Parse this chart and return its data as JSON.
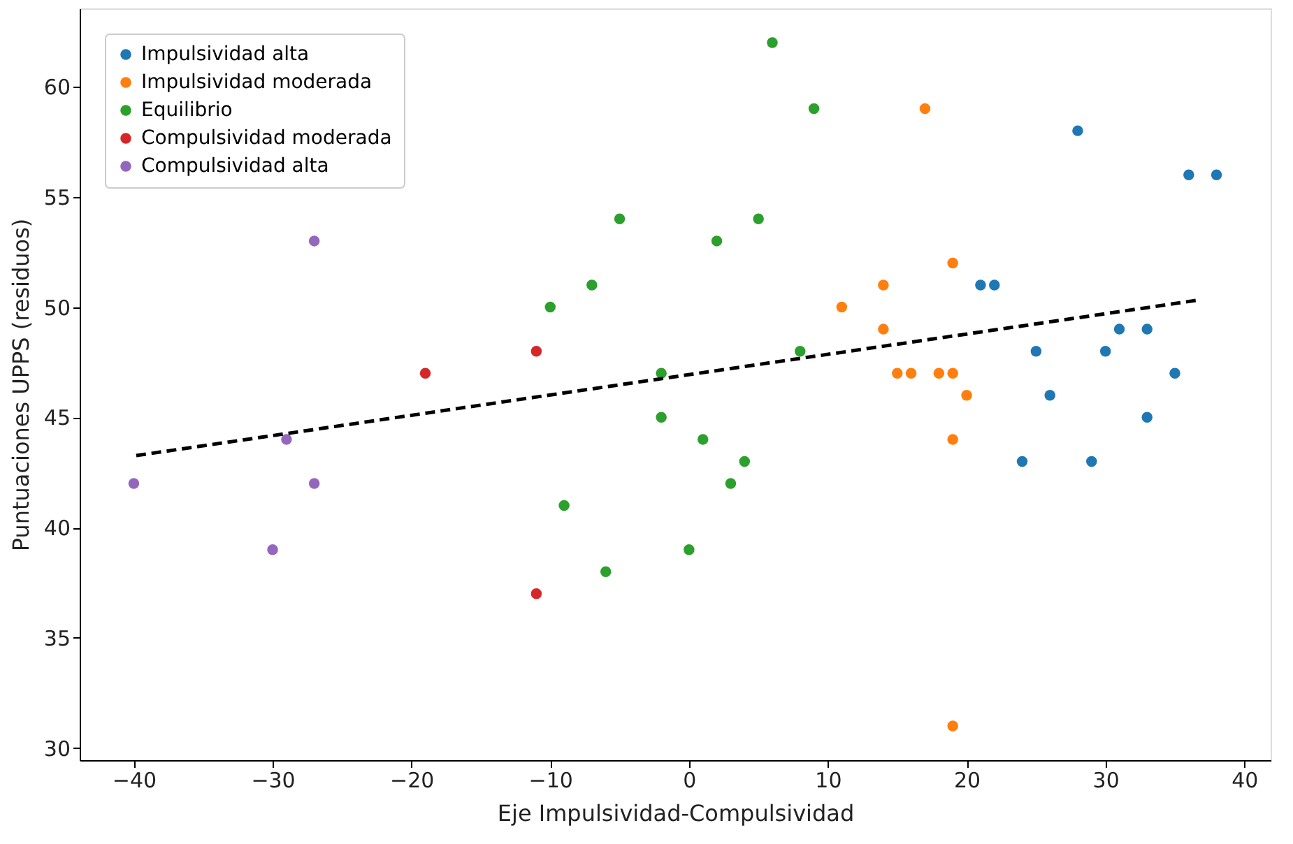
{
  "chart_data": {
    "type": "scatter",
    "xlabel": "Eje Impulsividad-Compulsividad",
    "ylabel": "Puntuaciones UPPS (residuos)",
    "xlim": [
      -43.9,
      41.9
    ],
    "ylim": [
      29.45,
      63.55
    ],
    "xticks": [
      {
        "value": -40,
        "label": "−40"
      },
      {
        "value": -30,
        "label": "−30"
      },
      {
        "value": -20,
        "label": "−20"
      },
      {
        "value": -10,
        "label": "−10"
      },
      0,
      10,
      20,
      30,
      40
    ],
    "yticks": [
      30,
      35,
      40,
      45,
      50,
      55,
      60
    ],
    "legend": "top left",
    "marker": "circle",
    "grid": false,
    "series": [
      {
        "name": "Impulsividad alta",
        "color": "#1f77b4",
        "x": [
          28,
          36,
          38,
          21,
          22,
          25,
          30,
          31,
          33,
          35,
          26,
          33,
          24,
          29
        ],
        "values": [
          58,
          56,
          56,
          51,
          51,
          48,
          48,
          49,
          49,
          47,
          46,
          45,
          43,
          43
        ]
      },
      {
        "name": "Impulsividad moderada",
        "color": "#ff7f0e",
        "x": [
          17,
          19,
          11,
          14,
          14,
          15,
          16,
          18,
          19,
          20,
          19,
          19
        ],
        "values": [
          59,
          52,
          50,
          51,
          49,
          47,
          47,
          47,
          47,
          46,
          44,
          31
        ]
      },
      {
        "name": "Equilibrio",
        "color": "#2ca02c",
        "x": [
          6,
          9,
          -5,
          5,
          2,
          -7,
          -10,
          8,
          -2,
          -2,
          1,
          4,
          3,
          -9,
          0,
          -6
        ],
        "values": [
          62,
          59,
          54,
          54,
          53,
          51,
          50,
          48,
          47,
          45,
          44,
          43,
          42,
          41,
          39,
          38
        ]
      },
      {
        "name": "Compulsividad moderada",
        "color": "#d62728",
        "x": [
          -19,
          -11,
          -11
        ],
        "values": [
          47,
          48,
          37
        ]
      },
      {
        "name": "Compulsividad alta",
        "color": "#9467bd",
        "x": [
          -27,
          -29,
          -27,
          -40,
          -30
        ],
        "values": [
          53,
          44,
          42,
          42,
          39
        ]
      },
      {
        "type": "line",
        "color": "#000000",
        "line_style": "dashed",
        "marker": "none",
        "x": [
          -40,
          36.5
        ],
        "values": [
          43.25,
          50.3
        ]
      }
    ]
  }
}
